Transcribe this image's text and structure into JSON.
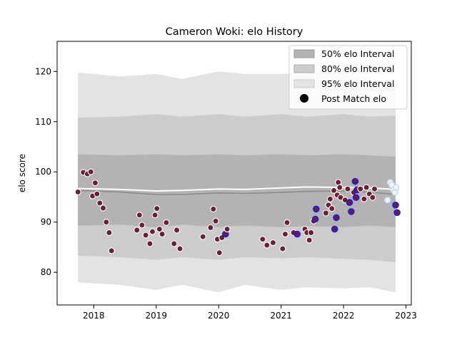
{
  "chart_data": {
    "type": "scatter",
    "title": "Cameron Woki: elo History",
    "xlabel": "",
    "ylabel": "elo score",
    "xlim": [
      "2017-06-01",
      "2023-02-01"
    ],
    "ylim": [
      73.5,
      126
    ],
    "x_ticks": [
      "2018",
      "2019",
      "2020",
      "2021",
      "2022",
      "2023"
    ],
    "y_ticks": [
      80,
      90,
      100,
      110,
      120
    ],
    "grid": false,
    "legend": {
      "placement": "top-right",
      "entries": [
        "50% elo Interval",
        "80% elo Interval",
        "95% elo Interval",
        "Post Match elo"
      ]
    },
    "colors": {
      "band50": "#b3b3b3",
      "band80": "#cccccc",
      "band95": "#e3e3e3",
      "median_line": "#8c8c8c",
      "mean_line": "#ffffff",
      "point_fill": "#6b1f33",
      "point_edge": "#ffffff",
      "highlight_edge": "#1a1aff",
      "recent_fill": "#eef4fa",
      "recent_edge": "#c5daee"
    },
    "interval_bands": {
      "x": [
        "2017-10-01",
        "2018-06-01",
        "2019-01-01",
        "2019-06-01",
        "2020-01-01",
        "2020-06-01",
        "2021-01-01",
        "2021-06-01",
        "2022-01-01",
        "2022-06-01",
        "2022-11-01"
      ],
      "p95_upper": [
        119.8,
        119.0,
        119.5,
        118.5,
        120.0,
        119.5,
        119.5,
        119.8,
        120.2,
        118.5,
        117.0
      ],
      "p80_upper": [
        110.8,
        111.0,
        111.5,
        111.0,
        111.5,
        111.0,
        111.5,
        111.0,
        111.5,
        111.0,
        111.2
      ],
      "p50_upper": [
        103.5,
        103.3,
        103.5,
        103.3,
        103.5,
        103.3,
        103.5,
        103.3,
        103.5,
        103.3,
        103.0
      ],
      "median": [
        96.3,
        96.0,
        95.5,
        95.5,
        95.8,
        95.7,
        95.9,
        96.1,
        96.2,
        96.0,
        95.5
      ],
      "mean": [
        96.7,
        96.5,
        96.2,
        96.3,
        96.6,
        96.5,
        96.8,
        97.0,
        96.9,
        96.8,
        96.5
      ],
      "p50_lower": [
        89.3,
        89.5,
        89.0,
        89.5,
        89.0,
        89.3,
        89.0,
        89.2,
        89.0,
        89.3,
        89.0
      ],
      "p80_lower": [
        83.3,
        83.0,
        82.5,
        83.0,
        82.5,
        83.0,
        82.8,
        83.0,
        82.7,
        82.5,
        82.0
      ],
      "p95_lower": [
        78.0,
        77.5,
        76.5,
        77.5,
        76.0,
        77.5,
        76.5,
        77.0,
        76.8,
        77.0,
        76.0
      ]
    },
    "series": [
      {
        "name": "Post Match elo",
        "points": [
          {
            "x": "2017-10-01",
            "y": 96.0
          },
          {
            "x": "2017-11-01",
            "y": 99.9
          },
          {
            "x": "2017-11-25",
            "y": 99.6
          },
          {
            "x": "2017-12-15",
            "y": 100.0
          },
          {
            "x": "2017-12-25",
            "y": 95.2
          },
          {
            "x": "2018-01-10",
            "y": 97.8
          },
          {
            "x": "2018-01-20",
            "y": 95.6
          },
          {
            "x": "2018-02-05",
            "y": 93.8
          },
          {
            "x": "2018-02-25",
            "y": 92.8
          },
          {
            "x": "2018-03-15",
            "y": 90.0
          },
          {
            "x": "2018-04-01",
            "y": 87.9
          },
          {
            "x": "2018-04-15",
            "y": 84.3
          },
          {
            "x": "2018-09-10",
            "y": 88.4
          },
          {
            "x": "2018-09-25",
            "y": 91.4
          },
          {
            "x": "2018-10-10",
            "y": 89.4
          },
          {
            "x": "2018-11-01",
            "y": 87.4
          },
          {
            "x": "2018-11-25",
            "y": 85.7
          },
          {
            "x": "2018-12-10",
            "y": 88.1
          },
          {
            "x": "2018-12-25",
            "y": 91.4
          },
          {
            "x": "2019-01-05",
            "y": 92.7
          },
          {
            "x": "2019-01-20",
            "y": 88.6
          },
          {
            "x": "2019-02-05",
            "y": 87.6
          },
          {
            "x": "2019-03-01",
            "y": 89.9
          },
          {
            "x": "2019-04-15",
            "y": 85.7
          },
          {
            "x": "2019-05-01",
            "y": 88.4
          },
          {
            "x": "2019-05-20",
            "y": 84.7
          },
          {
            "x": "2019-10-01",
            "y": 87.1
          },
          {
            "x": "2019-11-15",
            "y": 88.9
          },
          {
            "x": "2019-12-01",
            "y": 92.6
          },
          {
            "x": "2019-12-15",
            "y": 90.2
          },
          {
            "x": "2019-12-25",
            "y": 86.6
          },
          {
            "x": "2020-01-05",
            "y": 83.9
          },
          {
            "x": "2020-01-20",
            "y": 86.9
          },
          {
            "x": "2020-02-10",
            "y": 87.6,
            "highlight": true
          },
          {
            "x": "2020-02-20",
            "y": 88.6
          },
          {
            "x": "2020-09-15",
            "y": 86.6
          },
          {
            "x": "2020-10-10",
            "y": 85.4
          },
          {
            "x": "2020-11-15",
            "y": 85.9
          },
          {
            "x": "2021-01-10",
            "y": 84.7
          },
          {
            "x": "2021-01-25",
            "y": 87.6
          },
          {
            "x": "2021-02-05",
            "y": 89.9
          },
          {
            "x": "2021-03-15",
            "y": 87.9
          },
          {
            "x": "2021-04-05",
            "y": 87.6,
            "highlight": true
          },
          {
            "x": "2021-05-20",
            "y": 88.6
          },
          {
            "x": "2021-06-01",
            "y": 87.9
          },
          {
            "x": "2021-06-15",
            "y": 86.4
          },
          {
            "x": "2021-06-25",
            "y": 87.9
          },
          {
            "x": "2021-07-10",
            "y": 90.2
          },
          {
            "x": "2021-07-20",
            "y": 90.6,
            "highlight": true
          },
          {
            "x": "2021-07-25",
            "y": 92.6,
            "highlight": true
          },
          {
            "x": "2021-09-20",
            "y": 91.8
          },
          {
            "x": "2021-10-05",
            "y": 93.4
          },
          {
            "x": "2021-10-15",
            "y": 94.6
          },
          {
            "x": "2021-10-25",
            "y": 92.7
          },
          {
            "x": "2021-11-05",
            "y": 96.3
          },
          {
            "x": "2021-11-10",
            "y": 88.6,
            "highlight": true
          },
          {
            "x": "2021-11-20",
            "y": 90.9,
            "highlight": true
          },
          {
            "x": "2021-11-25",
            "y": 95.4
          },
          {
            "x": "2021-12-01",
            "y": 97.9
          },
          {
            "x": "2021-12-10",
            "y": 96.9
          },
          {
            "x": "2021-12-15",
            "y": 94.9
          },
          {
            "x": "2022-01-10",
            "y": 94.4
          },
          {
            "x": "2022-01-25",
            "y": 96.6
          },
          {
            "x": "2022-02-05",
            "y": 93.9,
            "highlight": true
          },
          {
            "x": "2022-02-15",
            "y": 92.1,
            "highlight": true
          },
          {
            "x": "2022-03-01",
            "y": 95.9
          },
          {
            "x": "2022-03-10",
            "y": 98.1,
            "highlight": true
          },
          {
            "x": "2022-03-15",
            "y": 94.9,
            "highlight": true
          },
          {
            "x": "2022-03-20",
            "y": 96.4,
            "highlight": true
          },
          {
            "x": "2022-04-10",
            "y": 96.6
          },
          {
            "x": "2022-05-01",
            "y": 94.6
          },
          {
            "x": "2022-05-15",
            "y": 96.9
          },
          {
            "x": "2022-06-01",
            "y": 95.6
          },
          {
            "x": "2022-06-20",
            "y": 94.9
          },
          {
            "x": "2022-07-01",
            "y": 96.6
          },
          {
            "x": "2022-11-01",
            "y": 93.4,
            "highlight": true
          },
          {
            "x": "2022-11-10",
            "y": 91.9,
            "highlight": true
          }
        ]
      },
      {
        "name": "recent",
        "points": [
          {
            "x": "2022-09-15",
            "y": 94.4
          },
          {
            "x": "2022-10-01",
            "y": 97.9
          },
          {
            "x": "2022-10-10",
            "y": 97.4
          },
          {
            "x": "2022-10-20",
            "y": 96.4
          },
          {
            "x": "2022-10-28",
            "y": 95.9
          },
          {
            "x": "2022-11-05",
            "y": 96.9
          }
        ]
      }
    ]
  }
}
